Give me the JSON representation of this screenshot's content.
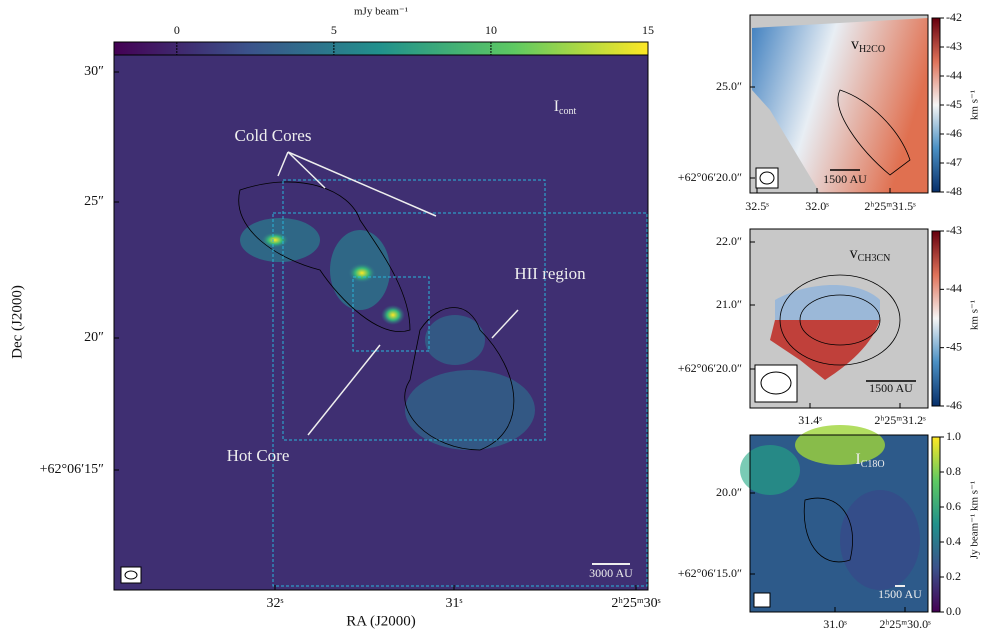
{
  "panels": [
    {
      "type": "image",
      "label": "I",
      "label_sub": "cont",
      "colorbar_label": "mJy beam⁻¹",
      "xlabel": "RA (J2000)",
      "ylabel": "Dec (J2000)",
      "xticks": [
        "32ˢ",
        "31ˢ",
        "2ʰ25ᵐ30ˢ"
      ],
      "yticks": [
        "30″",
        "25″",
        "20″",
        "+62°06′15″"
      ],
      "clim": [
        -2,
        15
      ],
      "cticks": [
        0,
        5,
        10,
        15
      ],
      "colormap": "viridis",
      "annotations": [
        "Cold Cores",
        "HII region",
        "Hot Core"
      ],
      "scalebar": "3000 AU"
    },
    {
      "type": "image",
      "label": "v",
      "label_sub": "H2CO",
      "colorbar_label": "km s⁻¹",
      "xticks": [
        "32.5ˢ",
        "32.0ˢ",
        "2ʰ25ᵐ31.5ˢ"
      ],
      "yticks": [
        "25.0″",
        "+62°06′20.0″"
      ],
      "clim": [
        -48,
        -42
      ],
      "cticks": [
        -42,
        -43,
        -44,
        -45,
        -46,
        -47,
        -48
      ],
      "colormap": "RdBu",
      "scalebar": "1500 AU"
    },
    {
      "type": "image",
      "label": "v",
      "label_sub": "CH3CN",
      "colorbar_label": "km s⁻¹",
      "xticks": [
        "31.4ˢ",
        "2ʰ25ᵐ31.2ˢ"
      ],
      "yticks": [
        "22.0″",
        "21.0″",
        "+62°06′20.0″"
      ],
      "clim": [
        -46,
        -43
      ],
      "cticks": [
        -43,
        -44,
        -45,
        -46
      ],
      "colormap": "RdBu",
      "scalebar": "1500 AU"
    },
    {
      "type": "image",
      "label": "I",
      "label_sub": "C18O",
      "colorbar_label": "Jy beam⁻¹ km s⁻¹",
      "xticks": [
        "31.0ˢ",
        "2ʰ25ᵐ30.0ˢ"
      ],
      "yticks": [
        "20.0″",
        "+62°06′15.0″"
      ],
      "clim": [
        0,
        1
      ],
      "cticks": [
        {
          "value": 0,
          "label": "0.0"
        },
        {
          "value": 0.2,
          "label": "0.2"
        },
        {
          "value": 0.4,
          "label": "0.4"
        },
        {
          "value": 0.6,
          "label": "0.6"
        },
        {
          "value": 0.8,
          "label": "0.8"
        },
        {
          "value": 1,
          "label": "1.0"
        }
      ],
      "colormap": "viridis",
      "scalebar": "1500 AU"
    }
  ]
}
